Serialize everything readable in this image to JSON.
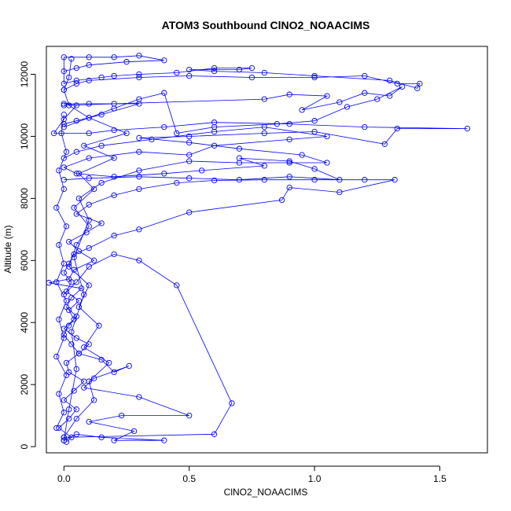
{
  "chart_data": {
    "type": "scatter",
    "title": "ATOM3 Southbound ClNO2_NOAACIMS",
    "xlabel": "ClNO2_NOAACIMS",
    "ylabel": "Altitude (m)",
    "xlim": [
      -0.07,
      1.69
    ],
    "ylim": [
      -200,
      12900
    ],
    "xticks": [
      0.0,
      0.5,
      1.0,
      1.5
    ],
    "xtick_labels": [
      "0.0",
      "0.5",
      "1.0",
      "1.5"
    ],
    "yticks": [
      0,
      2000,
      4000,
      6000,
      8000,
      10000,
      12000
    ],
    "ytick_labels": [
      "0",
      "2000",
      "4000",
      "6000",
      "8000",
      "10000",
      "12000"
    ],
    "grid": false,
    "legend": "none",
    "marker": "open-circle",
    "connected": true,
    "color": "#0000ff",
    "series": [
      {
        "points": [
          [
            0.01,
            150
          ],
          [
            0.03,
            300
          ],
          [
            -0.02,
            600
          ],
          [
            0.02,
            900
          ],
          [
            0.05,
            1200
          ],
          [
            0.0,
            1500
          ],
          [
            0.04,
            1800
          ],
          [
            0.08,
            2100
          ],
          [
            0.02,
            2400
          ],
          [
            0.01,
            2700
          ],
          [
            0.06,
            3000
          ],
          [
            0.03,
            3300
          ],
          [
            0.0,
            3600
          ],
          [
            0.02,
            3900
          ],
          [
            0.05,
            4200
          ],
          [
            0.01,
            4500
          ],
          [
            0.03,
            4800
          ],
          [
            0.07,
            5100
          ],
          [
            -0.06,
            5280
          ],
          [
            0.02,
            5400
          ],
          [
            0.04,
            5700
          ],
          [
            0.12,
            6000
          ],
          [
            0.06,
            6300
          ],
          [
            0.02,
            6600
          ],
          [
            0.09,
            6900
          ],
          [
            0.15,
            7200
          ],
          [
            0.05,
            7500
          ],
          [
            0.1,
            7800
          ],
          [
            0.2,
            8100
          ],
          [
            0.3,
            8300
          ],
          [
            0.45,
            8500
          ],
          [
            0.6,
            8580
          ],
          [
            0.8,
            8600
          ],
          [
            1.0,
            8600
          ],
          [
            1.2,
            8600
          ],
          [
            1.32,
            8600
          ],
          [
            1.1,
            8200
          ],
          [
            0.9,
            8350
          ],
          [
            0.87,
            7950
          ],
          [
            0.5,
            7550
          ],
          [
            0.3,
            7000
          ],
          [
            0.2,
            6800
          ],
          [
            0.1,
            6400
          ],
          [
            0.04,
            6200
          ],
          [
            0.02,
            5900
          ],
          [
            0.0,
            5600
          ],
          [
            0.03,
            5300
          ],
          [
            0.01,
            5000
          ],
          [
            0.06,
            4700
          ],
          [
            0.02,
            4400
          ],
          [
            0.04,
            4100
          ],
          [
            0.0,
            3800
          ],
          [
            0.05,
            3500
          ],
          [
            0.1,
            3300
          ],
          [
            0.06,
            3000
          ],
          [
            0.15,
            2800
          ],
          [
            0.2,
            2400
          ],
          [
            0.26,
            2600
          ],
          [
            0.12,
            2200
          ],
          [
            0.08,
            1900
          ],
          [
            0.3,
            1600
          ],
          [
            0.5,
            1000
          ],
          [
            0.23,
            1000
          ],
          [
            0.1,
            800
          ],
          [
            0.28,
            500
          ],
          [
            0.2,
            200
          ],
          [
            0.4,
            200
          ],
          [
            0.15,
            300
          ],
          [
            0.05,
            400
          ],
          [
            0.0,
            200
          ]
        ]
      },
      {
        "points": [
          [
            0.0,
            200
          ],
          [
            0.02,
            1200
          ],
          [
            0.05,
            2500
          ],
          [
            0.03,
            3700
          ],
          [
            0.08,
            4900
          ],
          [
            0.04,
            6100
          ],
          [
            0.1,
            7300
          ],
          [
            0.06,
            8000
          ],
          [
            0.15,
            8500
          ],
          [
            0.3,
            8900
          ],
          [
            0.5,
            9200
          ],
          [
            0.7,
            9150
          ],
          [
            0.9,
            9150
          ],
          [
            1.05,
            9150
          ],
          [
            0.95,
            9400
          ],
          [
            0.7,
            9600
          ],
          [
            0.5,
            9800
          ],
          [
            0.3,
            9950
          ],
          [
            0.5,
            10000
          ],
          [
            0.8,
            10100
          ],
          [
            1.0,
            10150
          ],
          [
            1.28,
            9750
          ],
          [
            1.33,
            10250
          ],
          [
            1.61,
            10250
          ],
          [
            1.2,
            10300
          ],
          [
            0.9,
            10400
          ],
          [
            0.6,
            10450
          ],
          [
            0.4,
            10300
          ],
          [
            0.2,
            10200
          ],
          [
            0.1,
            10100
          ],
          [
            -0.04,
            10100
          ],
          [
            0.0,
            10550
          ],
          [
            0.05,
            11000
          ],
          [
            0.0,
            11050
          ],
          [
            0.1,
            11050
          ],
          [
            0.2,
            11050
          ],
          [
            0.3,
            11050
          ],
          [
            0.15,
            10700
          ],
          [
            0.05,
            10500
          ],
          [
            0.0,
            10400
          ]
        ]
      },
      {
        "points": [
          [
            0.0,
            11500
          ],
          [
            0.05,
            11700
          ],
          [
            0.1,
            11800
          ],
          [
            0.3,
            11900
          ],
          [
            0.5,
            11950
          ],
          [
            0.75,
            11900
          ],
          [
            1.0,
            11900
          ],
          [
            1.2,
            11950
          ],
          [
            1.33,
            11700
          ],
          [
            1.42,
            11700
          ],
          [
            1.41,
            11550
          ],
          [
            1.3,
            11800
          ],
          [
            1.0,
            11950
          ],
          [
            0.8,
            12050
          ],
          [
            0.6,
            12100
          ],
          [
            0.5,
            12150
          ],
          [
            0.7,
            12150
          ],
          [
            0.75,
            12200
          ],
          [
            0.6,
            12200
          ],
          [
            0.45,
            12050
          ],
          [
            0.3,
            12000
          ],
          [
            0.2,
            11950
          ],
          [
            0.15,
            11900
          ],
          [
            0.05,
            11800
          ],
          [
            0.0,
            11700
          ],
          [
            0.0,
            12550
          ],
          [
            0.1,
            12550
          ],
          [
            0.2,
            12550
          ],
          [
            0.3,
            12600
          ],
          [
            0.4,
            12450
          ],
          [
            0.25,
            12400
          ],
          [
            0.1,
            12300
          ],
          [
            0.05,
            12200
          ],
          [
            0.0,
            12100
          ]
        ]
      },
      {
        "points": [
          [
            0.0,
            8600
          ],
          [
            0.1,
            8650
          ],
          [
            0.3,
            8700
          ],
          [
            0.5,
            8650
          ],
          [
            0.7,
            8600
          ],
          [
            0.9,
            8700
          ],
          [
            1.1,
            8600
          ],
          [
            1.0,
            8950
          ],
          [
            0.9,
            9200
          ],
          [
            0.7,
            9300
          ],
          [
            0.8,
            9050
          ],
          [
            0.55,
            8900
          ],
          [
            0.4,
            8800
          ],
          [
            0.2,
            8700
          ],
          [
            0.05,
            8800
          ],
          [
            0.0,
            9000
          ],
          [
            0.1,
            9300
          ],
          [
            0.3,
            9500
          ],
          [
            0.5,
            9400
          ],
          [
            0.6,
            9700
          ],
          [
            0.9,
            9900
          ],
          [
            1.05,
            10000
          ],
          [
            0.8,
            10300
          ],
          [
            0.6,
            10150
          ],
          [
            0.35,
            9900
          ],
          [
            0.15,
            9700
          ],
          [
            0.05,
            9500
          ],
          [
            0.0,
            9300
          ]
        ]
      },
      {
        "points": [
          [
            0.0,
            11000
          ],
          [
            0.8,
            11200
          ],
          [
            0.9,
            11350
          ],
          [
            1.05,
            11300
          ],
          [
            0.95,
            10850
          ],
          [
            1.1,
            11100
          ],
          [
            1.2,
            11400
          ],
          [
            1.3,
            11300
          ],
          [
            1.35,
            11600
          ],
          [
            1.25,
            11200
          ],
          [
            1.13,
            10950
          ],
          [
            1.0,
            10500
          ],
          [
            0.85,
            10400
          ],
          [
            0.6,
            10300
          ],
          [
            0.45,
            10100
          ],
          [
            0.4,
            11400
          ],
          [
            0.3,
            11200
          ],
          [
            0.2,
            10900
          ],
          [
            0.1,
            10600
          ],
          [
            0.0,
            10300
          ]
        ]
      },
      {
        "points": [
          [
            0.0,
            300
          ],
          [
            0.6,
            400
          ],
          [
            0.67,
            1400
          ],
          [
            0.45,
            5200
          ],
          [
            0.3,
            6000
          ],
          [
            0.2,
            6200
          ],
          [
            0.1,
            5800
          ],
          [
            0.05,
            5300
          ],
          [
            0.0,
            4900
          ]
        ]
      },
      {
        "points": [
          [
            0.0,
            300
          ],
          [
            0.05,
            900
          ],
          [
            0.12,
            1500
          ],
          [
            0.1,
            2100
          ],
          [
            0.18,
            2700
          ],
          [
            0.08,
            3200
          ],
          [
            0.14,
            3900
          ],
          [
            0.06,
            4500
          ],
          [
            0.1,
            5200
          ],
          [
            0.02,
            5800
          ],
          [
            0.05,
            6500
          ],
          [
            0.1,
            7100
          ],
          [
            0.04,
            7700
          ],
          [
            0.12,
            8300
          ],
          [
            0.06,
            8800
          ],
          [
            0.2,
            9300
          ],
          [
            0.08,
            9700
          ],
          [
            0.25,
            10100
          ],
          [
            0.1,
            10600
          ],
          [
            0.02,
            11000
          ],
          [
            0.0,
            11500
          ],
          [
            0.02,
            11900
          ],
          [
            0.03,
            12500
          ]
        ]
      },
      {
        "points": [
          [
            -0.03,
            600
          ],
          [
            0.0,
            1100
          ],
          [
            -0.02,
            1700
          ],
          [
            0.01,
            2300
          ],
          [
            -0.03,
            2900
          ],
          [
            0.0,
            3500
          ],
          [
            -0.02,
            4100
          ],
          [
            0.01,
            4700
          ],
          [
            -0.03,
            5300
          ],
          [
            0.0,
            5900
          ],
          [
            -0.02,
            6500
          ],
          [
            0.01,
            7100
          ],
          [
            -0.03,
            7700
          ],
          [
            0.0,
            8300
          ],
          [
            -0.02,
            8900
          ],
          [
            0.01,
            9500
          ],
          [
            -0.01,
            10100
          ],
          [
            0.0,
            10700
          ]
        ]
      }
    ]
  }
}
